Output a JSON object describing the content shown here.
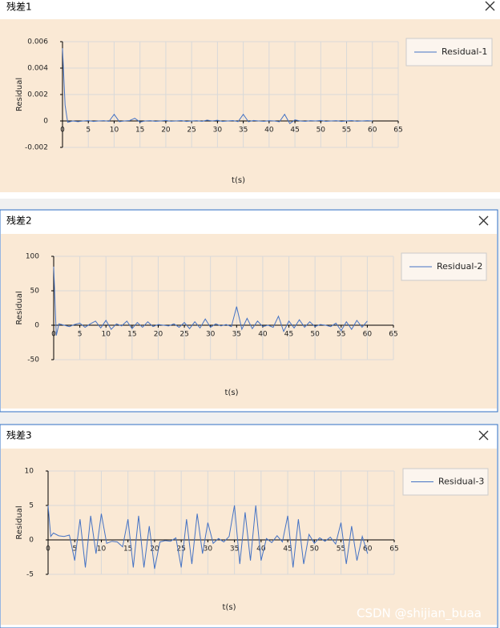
{
  "windows": [
    {
      "title": "残差1"
    },
    {
      "title": "残差2"
    },
    {
      "title": "残差3"
    }
  ],
  "watermark": "CSDN @shijian_buaa",
  "chart_data": [
    {
      "type": "line",
      "xlabel": "t(s)",
      "ylabel": "Residual",
      "grid": true,
      "legend": "upper right",
      "xlim": [
        0,
        65
      ],
      "xticks": [
        0,
        5,
        10,
        15,
        20,
        25,
        30,
        35,
        40,
        45,
        50,
        55,
        60,
        65
      ],
      "ylim": [
        -0.002,
        0.006
      ],
      "yticks": [
        -0.002,
        0,
        0.002,
        0.004,
        0.006
      ],
      "x": [
        0,
        0.5,
        1,
        2,
        3,
        4,
        5,
        6,
        7,
        8,
        9,
        10,
        11,
        12,
        13,
        14,
        15,
        16,
        17,
        18,
        19,
        20,
        21,
        22,
        23,
        24,
        25,
        26,
        27,
        28,
        29,
        30,
        31,
        32,
        33,
        34,
        35,
        36,
        37,
        38,
        39,
        40,
        41,
        42,
        43,
        44,
        45,
        46,
        47,
        48,
        49,
        50,
        51,
        52,
        53,
        54,
        55,
        56,
        57,
        58,
        59,
        60
      ],
      "series": [
        {
          "name": "Residual-1",
          "color": "#4472c4",
          "values": [
            0.0055,
            0.0012,
            -0.0001,
            0,
            -5e-05,
            0,
            3e-05,
            -4e-05,
            0,
            2e-05,
            -3e-05,
            0.0005,
            -5e-05,
            0,
            3e-05,
            0.0002,
            -8e-05,
            0,
            2e-05,
            -3e-05,
            0,
            4e-05,
            -2e-05,
            0,
            3e-05,
            -4e-05,
            0,
            2e-05,
            -3e-05,
            6e-05,
            0,
            5e-05,
            -4e-05,
            0,
            3e-05,
            -5e-05,
            0.0005,
            -6e-05,
            4e-05,
            0,
            -3e-05,
            2e-05,
            0,
            -6e-05,
            0.0005,
            -0.0002,
            8e-05,
            0,
            -3e-05,
            2e-05,
            0,
            4e-05,
            -3e-05,
            0,
            2e-05,
            -4e-05,
            0,
            3e-05,
            -2e-05,
            0,
            2e-05,
            0
          ]
        }
      ]
    },
    {
      "type": "line",
      "xlabel": "t(s)",
      "ylabel": "Residual",
      "grid": true,
      "legend": "upper right",
      "xlim": [
        0,
        65
      ],
      "xticks": [
        0,
        5,
        10,
        15,
        20,
        25,
        30,
        35,
        40,
        45,
        50,
        55,
        60,
        65
      ],
      "ylim": [
        -50,
        100
      ],
      "yticks": [
        -50,
        0,
        50,
        100
      ],
      "x": [
        0,
        0.5,
        1,
        2,
        3,
        4,
        5,
        6,
        7,
        8,
        9,
        10,
        11,
        12,
        13,
        14,
        15,
        16,
        17,
        18,
        19,
        20,
        21,
        22,
        23,
        24,
        25,
        26,
        27,
        28,
        29,
        30,
        31,
        32,
        33,
        34,
        35,
        36,
        37,
        38,
        39,
        40,
        41,
        42,
        43,
        44,
        45,
        46,
        47,
        48,
        49,
        50,
        51,
        52,
        53,
        54,
        55,
        56,
        57,
        58,
        59,
        60
      ],
      "series": [
        {
          "name": "Residual-2",
          "color": "#4472c4",
          "values": [
            85,
            -15,
            2,
            0,
            -2,
            1,
            3,
            -3,
            2,
            6,
            -4,
            7,
            -6,
            2,
            -1,
            6,
            -5,
            4,
            -3,
            5,
            -2,
            1,
            0,
            -1,
            2,
            -3,
            4,
            -5,
            5,
            -4,
            9,
            -3,
            2,
            -1,
            1,
            -2,
            27,
            -6,
            10,
            -5,
            6,
            -2,
            0,
            -3,
            13,
            -9,
            6,
            -4,
            8,
            -3,
            5,
            -2,
            1,
            0,
            -2,
            3,
            -8,
            5,
            -6,
            7,
            -3,
            6
          ]
        }
      ]
    },
    {
      "type": "line",
      "xlabel": "t(s)",
      "ylabel": "Residual",
      "grid": true,
      "legend": "upper right",
      "xlim": [
        0,
        65
      ],
      "xticks": [
        0,
        5,
        10,
        15,
        20,
        25,
        30,
        35,
        40,
        45,
        50,
        55,
        60,
        65
      ],
      "ylim": [
        -5,
        10
      ],
      "yticks": [
        -5,
        0,
        5,
        10
      ],
      "x": [
        0,
        0.5,
        1,
        2,
        3,
        4,
        5,
        6,
        7,
        8,
        9,
        10,
        11,
        12,
        13,
        14,
        15,
        16,
        17,
        18,
        19,
        20,
        21,
        22,
        23,
        24,
        25,
        26,
        27,
        28,
        29,
        30,
        31,
        32,
        33,
        34,
        35,
        36,
        37,
        38,
        39,
        40,
        41,
        42,
        43,
        44,
        45,
        46,
        47,
        48,
        49,
        50,
        51,
        52,
        53,
        54,
        55,
        56,
        57,
        58,
        59,
        60
      ],
      "series": [
        {
          "name": "Residual-3",
          "color": "#4472c4",
          "values": [
            5,
            0.5,
            1,
            0.6,
            0.5,
            0.7,
            -3,
            3,
            -4,
            3.5,
            -2,
            3.8,
            -0.5,
            -0.2,
            -0.3,
            -1,
            3,
            -4,
            3.5,
            -4,
            2,
            -4.2,
            -0.3,
            -0.1,
            -0.2,
            0.3,
            -4,
            3,
            -3.5,
            3.8,
            -2,
            2.5,
            -0.5,
            0.2,
            -0.3,
            0.5,
            5,
            -3.5,
            4,
            -3,
            5,
            -3,
            0.2,
            -0.4,
            0.6,
            -0.3,
            3.5,
            -4,
            3,
            -3.5,
            0.8,
            -0.5,
            0.3,
            -0.2,
            0.4,
            -0.6,
            2.5,
            -3.5,
            2,
            -3,
            0.5,
            -2
          ]
        }
      ]
    }
  ]
}
